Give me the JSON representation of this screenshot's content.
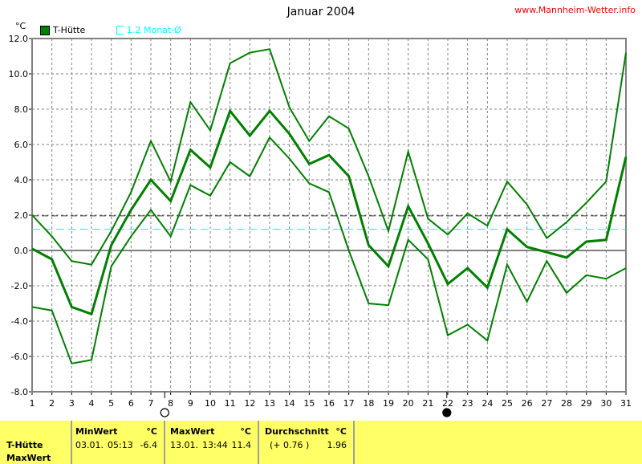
{
  "header": {
    "title": "Januar 2004",
    "site": "www.Mannheim-Wetter.info"
  },
  "legend": {
    "unit": "°C",
    "series1": "T-Hütte",
    "series2": "1.2 Monat-Ø"
  },
  "colors": {
    "series": "#007f00",
    "reference": "#00ffff",
    "mean_line": "#404040"
  },
  "moon_phases": [
    {
      "symbol": "full-moon",
      "day": 7.7
    },
    {
      "symbol": "new-moon",
      "day": 21.95
    }
  ],
  "chart_data": {
    "type": "line",
    "title": "Januar 2004",
    "ylabel": "°C",
    "xlabel": "",
    "ylim": [
      -8,
      12
    ],
    "xlim": [
      1,
      31
    ],
    "grid": true,
    "legend_position": "top-left",
    "yticks": [
      "12.0",
      "10.0",
      "8.0",
      "6.0",
      "4.0",
      "2.0",
      "0.0",
      "-2.0",
      "-4.0",
      "-6.0",
      "-8.0"
    ],
    "x": [
      1,
      2,
      3,
      4,
      5,
      6,
      7,
      8,
      9,
      10,
      11,
      12,
      13,
      14,
      15,
      16,
      17,
      18,
      19,
      20,
      21,
      22,
      23,
      24,
      25,
      26,
      27,
      28,
      29,
      30,
      31
    ],
    "series": [
      {
        "role": "max",
        "values": [
          2.0,
          0.8,
          -0.6,
          -0.8,
          1.1,
          3.3,
          6.2,
          3.9,
          8.4,
          6.8,
          10.6,
          11.2,
          11.4,
          8.1,
          6.2,
          7.6,
          6.9,
          4.2,
          1.1,
          5.6,
          1.8,
          0.9,
          2.1,
          1.4,
          3.9,
          2.6,
          0.7,
          1.6,
          2.7,
          3.9,
          11.2
        ]
      },
      {
        "role": "mean",
        "values": [
          0.1,
          -0.5,
          -3.2,
          -3.6,
          0.3,
          2.3,
          4.0,
          2.8,
          5.7,
          4.7,
          7.9,
          6.5,
          7.9,
          6.6,
          4.9,
          5.4,
          4.2,
          0.3,
          -0.9,
          2.5,
          0.4,
          -1.9,
          -1.0,
          -2.1,
          1.2,
          0.2,
          -0.1,
          -0.4,
          0.5,
          0.6,
          5.3
        ]
      },
      {
        "role": "min",
        "values": [
          -3.2,
          -3.4,
          -6.4,
          -6.2,
          -0.9,
          0.8,
          2.3,
          0.8,
          3.7,
          3.1,
          5.0,
          4.2,
          6.4,
          5.2,
          3.8,
          3.3,
          0.0,
          -3.0,
          -3.1,
          0.6,
          -0.5,
          -4.8,
          -4.2,
          -5.1,
          -0.8,
          -2.9,
          -0.6,
          -2.4,
          -1.4,
          -1.6,
          -1.0
        ]
      }
    ],
    "reference_lines": [
      {
        "role": "month-mean",
        "value": 1.96
      },
      {
        "role": "1.2 Monat-Ø",
        "value": 1.2
      }
    ]
  },
  "table": {
    "row_label1": "T-Hütte",
    "row_label2": "MaxWert",
    "min": {
      "header": "MinWert",
      "unit": "°C",
      "date": "03.01.",
      "time": "05:13",
      "value": "-6.4"
    },
    "max": {
      "header": "MaxWert",
      "unit": "°C",
      "date": "13.01.",
      "time": "13:44",
      "value": "11.4"
    },
    "avg": {
      "header": "Durchschnitt",
      "unit": "°C",
      "delta": "(+ 0.76 )",
      "value": "1.96"
    }
  }
}
